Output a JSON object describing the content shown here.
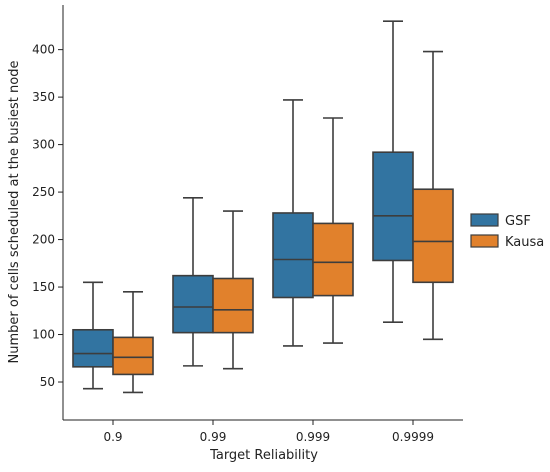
{
  "chart_data": {
    "type": "boxplot",
    "title": "",
    "xlabel": "Target Reliability",
    "ylabel": "Number of cells scheduled at the busiest node",
    "categories": [
      "0.9",
      "0.99",
      "0.999",
      "0.9999"
    ],
    "yticks": [
      50,
      100,
      150,
      200,
      250,
      300,
      350,
      400
    ],
    "ylim": [
      10,
      447
    ],
    "grid": false,
    "legend_position": "right",
    "series": [
      {
        "name": "GSF",
        "color": "#3274a1",
        "boxes": [
          {
            "whisker_low": 43,
            "q1": 66,
            "median": 80,
            "q3": 105,
            "whisker_high": 155
          },
          {
            "whisker_low": 67,
            "q1": 102,
            "median": 129,
            "q3": 162,
            "whisker_high": 244
          },
          {
            "whisker_low": 88,
            "q1": 139,
            "median": 179,
            "q3": 228,
            "whisker_high": 347
          },
          {
            "whisker_low": 113,
            "q1": 178,
            "median": 225,
            "q3": 292,
            "whisker_high": 430
          }
        ]
      },
      {
        "name": "Kausa",
        "color": "#e1812c",
        "boxes": [
          {
            "whisker_low": 39,
            "q1": 58,
            "median": 76,
            "q3": 97,
            "whisker_high": 145
          },
          {
            "whisker_low": 64,
            "q1": 102,
            "median": 126,
            "q3": 159,
            "whisker_high": 230
          },
          {
            "whisker_low": 91,
            "q1": 141,
            "median": 176,
            "q3": 217,
            "whisker_high": 328
          },
          {
            "whisker_low": 95,
            "q1": 155,
            "median": 198,
            "q3": 253,
            "whisker_high": 398
          }
        ]
      }
    ]
  }
}
